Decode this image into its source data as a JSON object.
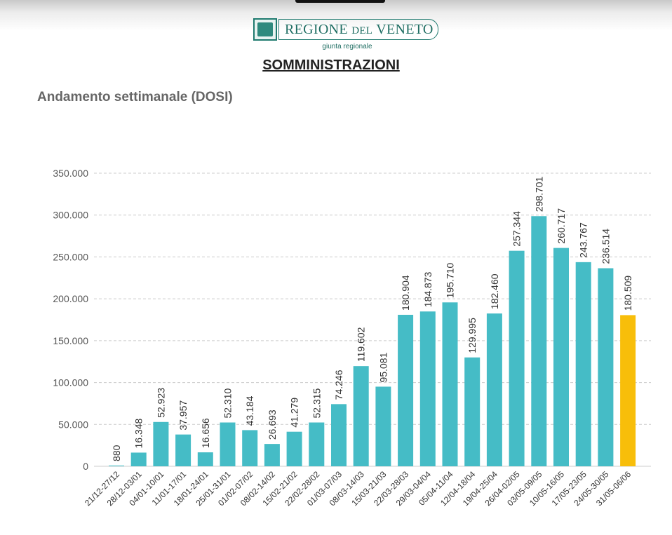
{
  "header": {
    "logo_text_regione": "REGIONE",
    "logo_text_del": "DEL",
    "logo_text_veneto": "VENETO",
    "giunta": "giunta regionale",
    "page_title": "SOMMINISTRAZIONI"
  },
  "colors": {
    "bar": "#45bcc6",
    "bar_highlight": "#f8be0a",
    "grid": "#cccccc",
    "brand": "#1f6e63"
  },
  "chart_data": {
    "type": "bar",
    "title": "Andamento settimanale (DOSI)",
    "ylim": [
      0,
      350000
    ],
    "y_ticks": [
      {
        "value": 0,
        "label": "0"
      },
      {
        "value": 50000,
        "label": "50.000"
      },
      {
        "value": 100000,
        "label": "100.000"
      },
      {
        "value": 150000,
        "label": "150.000"
      },
      {
        "value": 200000,
        "label": "200.000"
      },
      {
        "value": 250000,
        "label": "250.000"
      },
      {
        "value": 300000,
        "label": "300.000"
      },
      {
        "value": 350000,
        "label": "350.000"
      }
    ],
    "grid": true,
    "categories": [
      "21/12-27/12",
      "28/12-03/01",
      "04/01-10/01",
      "11/01-17/01",
      "18/01-24/01",
      "25/01-31/01",
      "01/02-07/02",
      "08/02-14/02",
      "15/02-21/02",
      "22/02-28/02",
      "01/03-07/03",
      "08/03-14/03",
      "15/03-21/03",
      "22/03-28/03",
      "29/03-04/04",
      "05/04-11/04",
      "12/04-18/04",
      "19/04-25/04",
      "26/04-02/05",
      "03/05-09/05",
      "10/05-16/05",
      "17/05-23/05",
      "24/05-30/05",
      "31/05-06/06"
    ],
    "values": [
      880,
      16348,
      52923,
      37957,
      16656,
      52310,
      43184,
      26693,
      41279,
      52315,
      74246,
      119602,
      95081,
      180904,
      184873,
      195710,
      129995,
      182460,
      257344,
      298701,
      260717,
      243767,
      236514,
      180509
    ],
    "value_labels": [
      "880",
      "16.348",
      "52.923",
      "37.957",
      "16.656",
      "52.310",
      "43.184",
      "26.693",
      "41.279",
      "52.315",
      "74.246",
      "119.602",
      "95.081",
      "180.904",
      "184.873",
      "195.710",
      "129.995",
      "182.460",
      "257.344",
      "298.701",
      "260.717",
      "243.767",
      "236.514",
      "180.509"
    ],
    "highlight_index": 23
  }
}
